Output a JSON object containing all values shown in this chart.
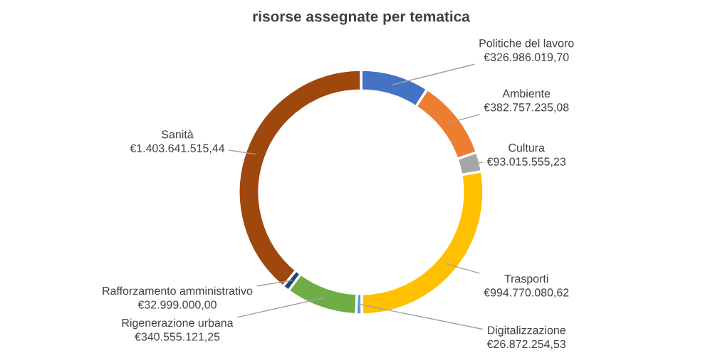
{
  "chart_data": {
    "type": "donut",
    "title": "risorse assegnate per tematica",
    "categories": [
      "Politiche del lavoro",
      "Ambiente",
      "Cultura",
      "Trasporti",
      "Digitalizzazione",
      "Rigenerazione urbana",
      "Rafforzamento amministrativo",
      "Sanità"
    ],
    "values": [
      326986019.7,
      382757235.08,
      93015555.23,
      994770080.62,
      26872254.53,
      340555121.25,
      32999000.0,
      1403641515.44
    ],
    "value_labels": [
      "€326.986.019,70",
      "€382.757.235,08",
      "€93.015.555,23",
      "€994.770.080,62",
      "€26.872.254,53",
      "€340.555.121,25",
      "€32.999.000,00",
      "€1.403.641.515,44"
    ],
    "colors": [
      "#4472c4",
      "#ed7d31",
      "#a5a5a5",
      "#ffc000",
      "#5b9bd5",
      "#70ad47",
      "#264478",
      "#9e480e"
    ]
  }
}
